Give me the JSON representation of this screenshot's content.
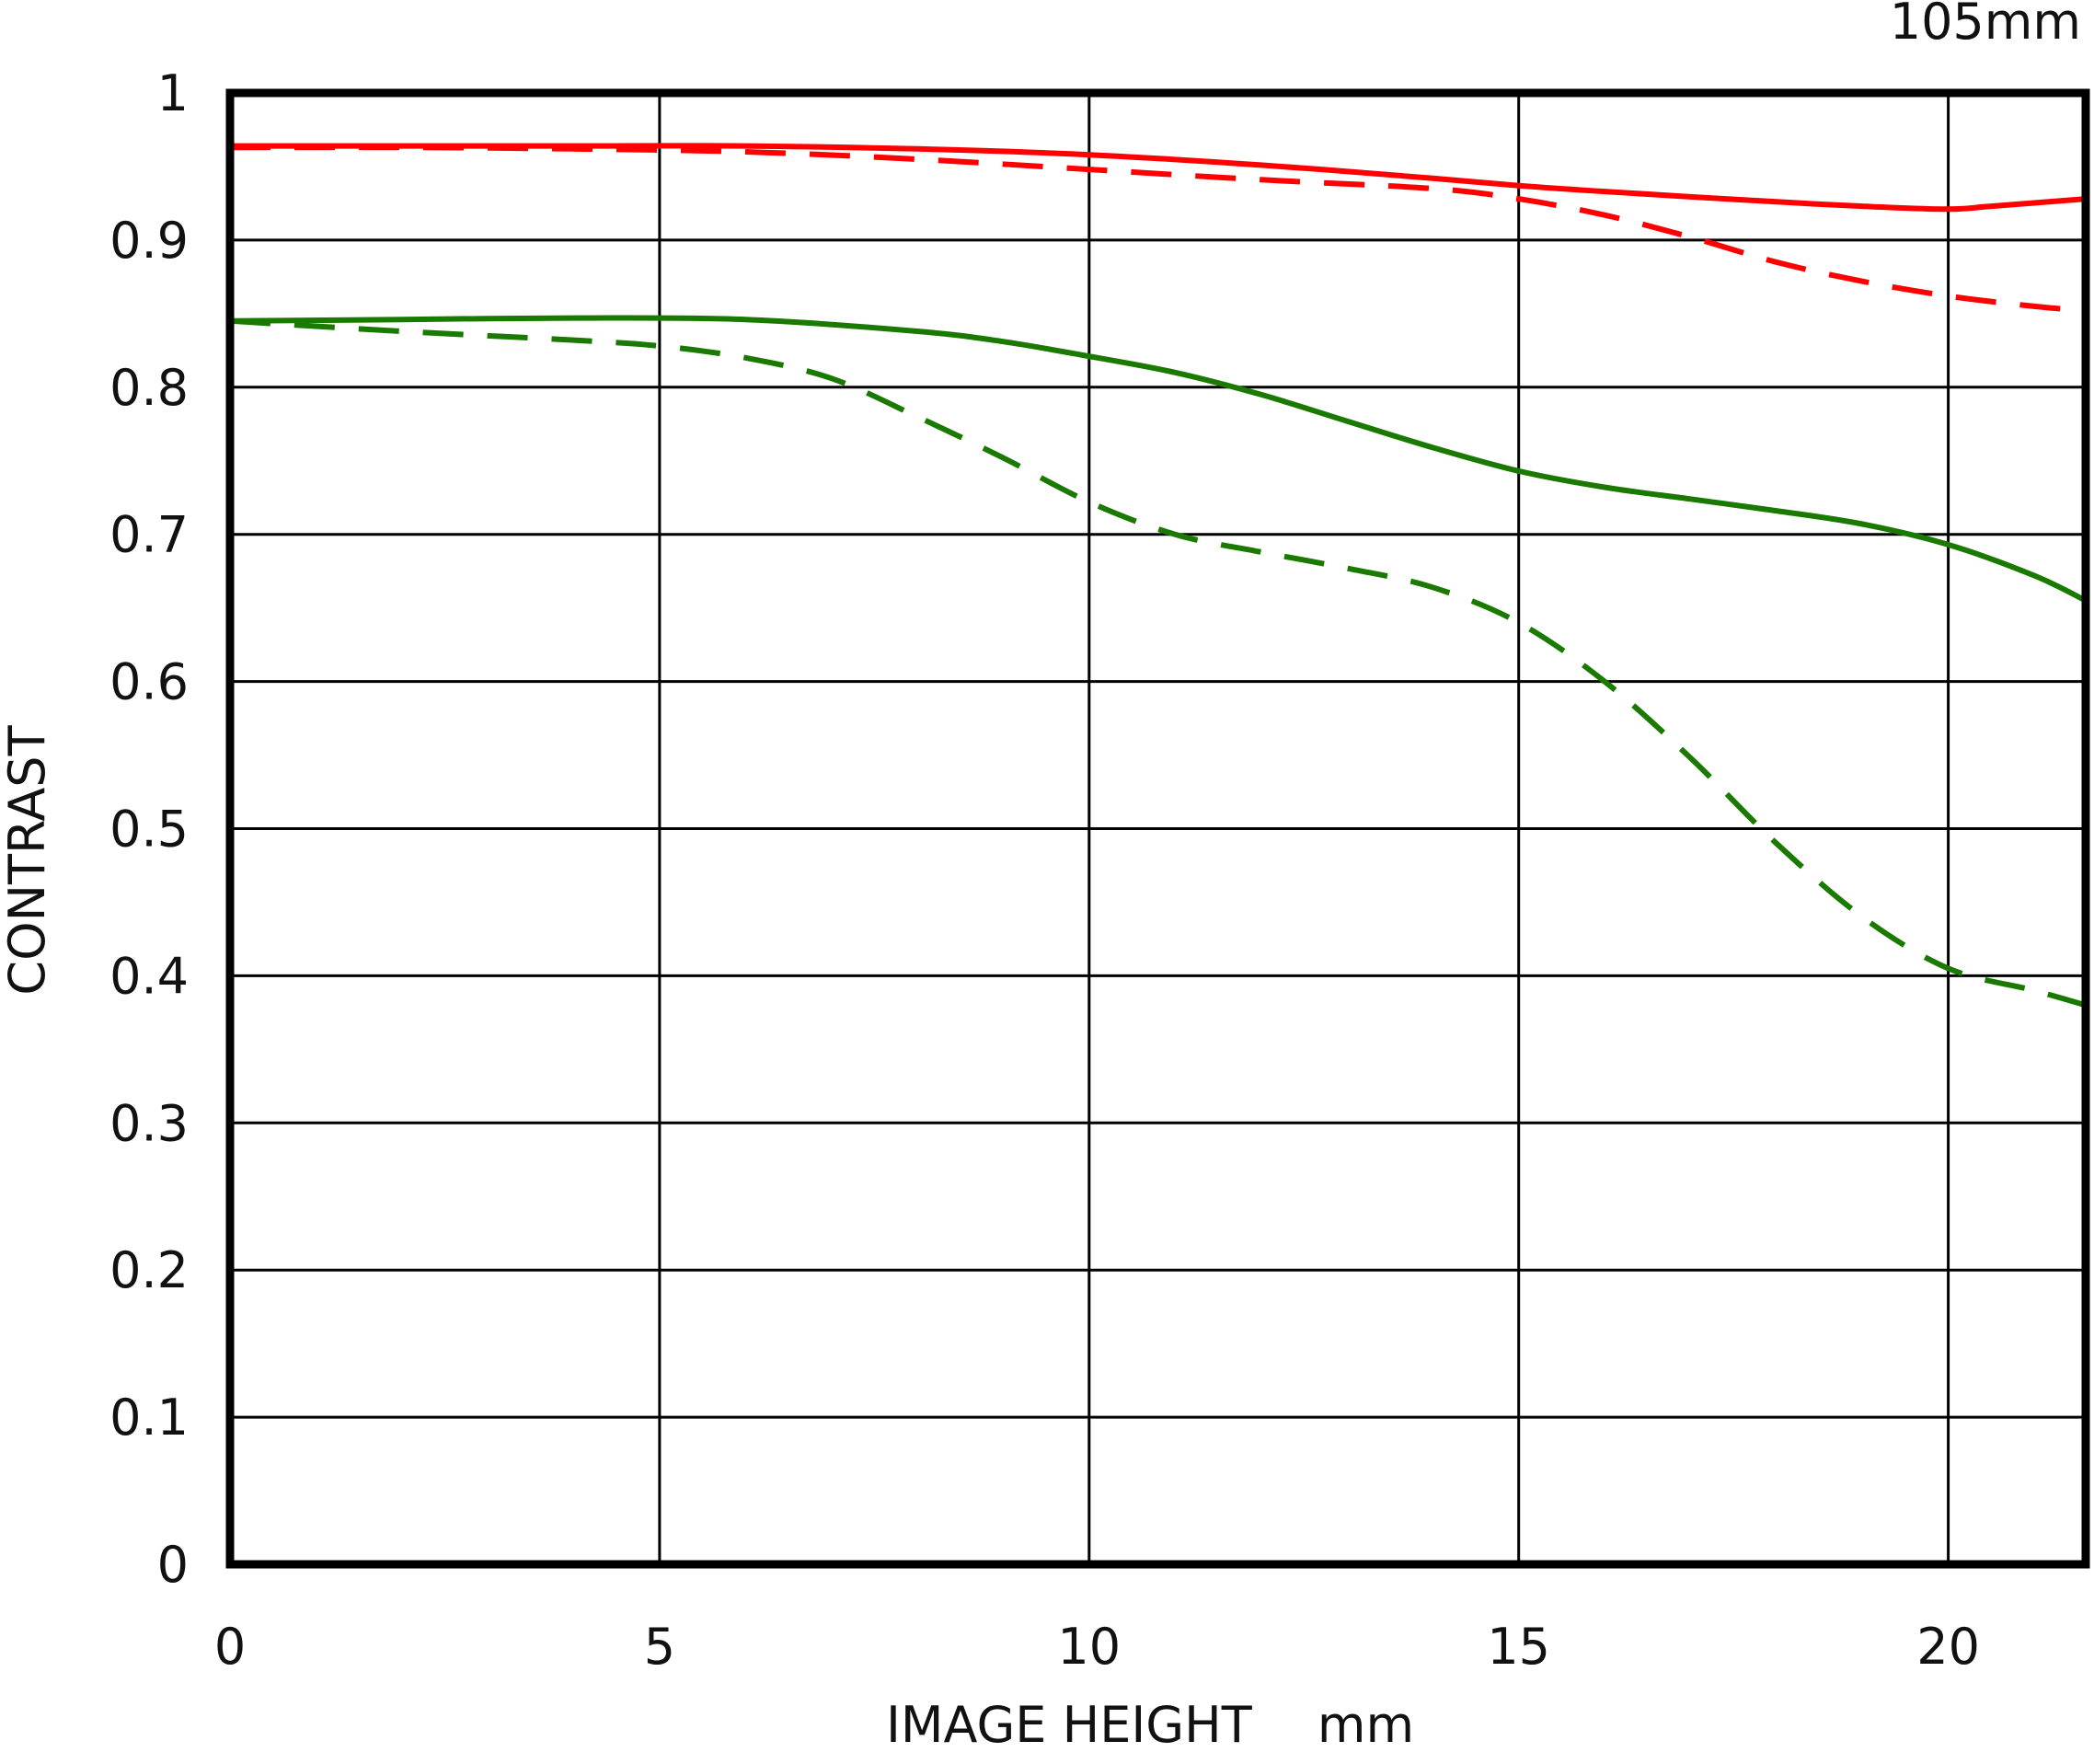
{
  "chart_data": {
    "type": "line",
    "title": "",
    "corner_label": "105mm",
    "xlabel": "IMAGE HEIGHT  mm",
    "ylabel": "CONTRAST",
    "xlim": [
      0,
      21.6
    ],
    "ylim": [
      0,
      1
    ],
    "x_ticks": [
      "0",
      "5",
      "10",
      "15",
      "20"
    ],
    "y_ticks": [
      "0",
      "0.1",
      "0.2",
      "0.3",
      "0.4",
      "0.5",
      "0.6",
      "0.7",
      "0.8",
      "0.9",
      "1"
    ],
    "grid": true,
    "legend": "none",
    "series": [
      {
        "color": "#ff0000",
        "style": "solid",
        "x": [
          0,
          2,
          4,
          6,
          8,
          10,
          12,
          14,
          15,
          16,
          18,
          19,
          20,
          20.5,
          21.6
        ],
        "y": [
          0.964,
          0.964,
          0.964,
          0.964,
          0.962,
          0.958,
          0.951,
          0.942,
          0.937,
          0.933,
          0.926,
          0.923,
          0.921,
          0.923,
          0.928
        ]
      },
      {
        "color": "#ff0000",
        "style": "dashed",
        "x": [
          0,
          2,
          4,
          6,
          8,
          10,
          12,
          14,
          15,
          16,
          17,
          18,
          19,
          20,
          21,
          21.6
        ],
        "y": [
          0.963,
          0.963,
          0.962,
          0.96,
          0.955,
          0.948,
          0.941,
          0.935,
          0.928,
          0.917,
          0.902,
          0.885,
          0.872,
          0.862,
          0.855,
          0.852
        ]
      },
      {
        "color": "#1a7a00",
        "style": "solid",
        "x": [
          0,
          2,
          4,
          6,
          8,
          9,
          10,
          11,
          12,
          13,
          14,
          15,
          16,
          17,
          18,
          19,
          20,
          21,
          21.6
        ],
        "y": [
          0.845,
          0.846,
          0.847,
          0.846,
          0.838,
          0.831,
          0.821,
          0.81,
          0.795,
          0.777,
          0.759,
          0.743,
          0.732,
          0.724,
          0.716,
          0.707,
          0.693,
          0.672,
          0.655
        ]
      },
      {
        "color": "#1a7a00",
        "style": "dashed",
        "x": [
          0,
          2,
          4,
          5,
          6,
          7,
          8,
          9,
          10,
          11,
          12,
          13,
          14,
          15,
          16,
          17,
          18,
          19,
          20,
          21,
          21.6
        ],
        "y": [
          0.845,
          0.838,
          0.832,
          0.828,
          0.82,
          0.806,
          0.78,
          0.752,
          0.722,
          0.7,
          0.688,
          0.677,
          0.664,
          0.64,
          0.6,
          0.548,
          0.49,
          0.44,
          0.405,
          0.39,
          0.38
        ]
      }
    ]
  }
}
